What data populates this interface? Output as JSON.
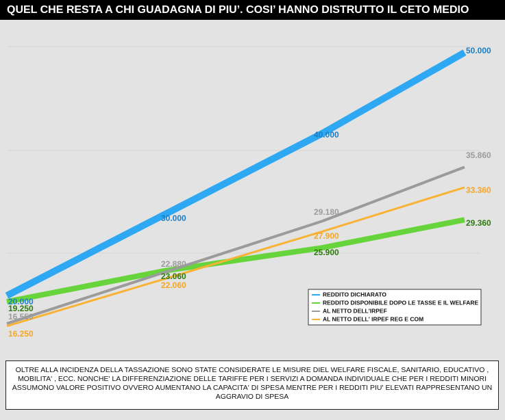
{
  "chart_data": {
    "type": "line",
    "title": "QUEL CHE RESTA A CHI GUADAGNA DI PIU’. COSI’ HANNO DISTRUTTO IL CETO MEDIO",
    "categories": [
      null,
      null,
      null,
      null
    ],
    "ylim": [
      12000,
      52000
    ],
    "legend": "lower right",
    "series": [
      {
        "name": "REDDITO DICHIARATO",
        "color": "#2ea8f2",
        "values": [
          20000,
          30000,
          40000,
          50000
        ],
        "value_labels": [
          "20.000",
          "30.000",
          "40.000",
          "50.000"
        ]
      },
      {
        "name": "REDDITO DISPONIBILE DOPO LE TASSE E IL WELFARE",
        "color": "#66d43a",
        "values": [
          19250,
          23060,
          25900,
          29360
        ],
        "value_labels": [
          "19.250",
          "23.060",
          "25.900",
          "29.360"
        ]
      },
      {
        "name": "AL NETTO DELL'IRPEF",
        "color": "#9b9b9b",
        "values": [
          16550,
          22880,
          29180,
          35860
        ],
        "value_labels": [
          "16.550",
          "22.880",
          "29.180",
          "35.860"
        ]
      },
      {
        "name": "AL NETTO DELL' IRPEF REG E COM",
        "color": "#f9b233",
        "values": [
          16250,
          22060,
          27900,
          33360
        ],
        "value_labels": [
          "16.250",
          "22.060",
          "27.900",
          "33.360"
        ]
      }
    ],
    "note": "OLTRE ALLA INCIDENZA DELLA TASSAZIONE SONO STATE CONSIDERATE LE MISURE DIEL WELFARE FISCALE, SANITARIO, EDUCATIVO , MOBILITA' , ECC. NONCHE' LA DIFFERENZIAZIONE DELLE TARIFFE PER I SERVIZI A DOMANDA INDIVIDUALE  CHE PER I REDDITI MINORI ASSUMONO VALORE POSITIVO OVVERO AUMENTANO LA CAPACITA' DI SPESA MENTRE PER I REDDITI PIU' ELEVATI RAPPRESENTANO UN AGGRAVIO DI SPESA"
  }
}
